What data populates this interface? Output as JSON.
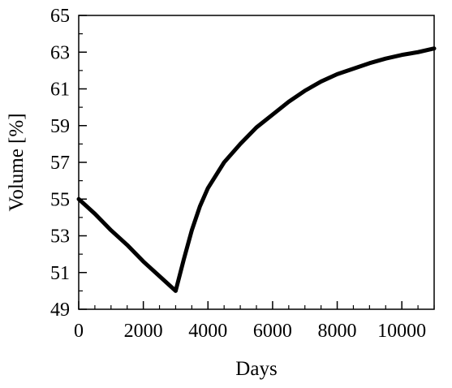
{
  "chart_data": {
    "type": "line",
    "title": "",
    "xlabel": "Days",
    "ylabel": "Volume [%]",
    "xlim": [
      0,
      11000
    ],
    "ylim": [
      49,
      65
    ],
    "xticks": [
      0,
      2000,
      4000,
      6000,
      8000,
      10000
    ],
    "yticks": [
      49,
      51,
      53,
      55,
      57,
      59,
      61,
      63,
      65
    ],
    "x_minor_step": 500,
    "y_minor_step": 1,
    "grid": false,
    "legend": "none",
    "line_color": "#000000",
    "series": [
      {
        "x": [
          0,
          500,
          1000,
          1500,
          2000,
          2500,
          3000,
          3250,
          3500,
          3750,
          4000,
          4500,
          5000,
          5500,
          6000,
          6500,
          7000,
          7500,
          8000,
          8500,
          9000,
          9500,
          10000,
          10500,
          11000
        ],
        "y": [
          55.0,
          54.2,
          53.3,
          52.5,
          51.6,
          50.8,
          50.0,
          51.7,
          53.3,
          54.6,
          55.6,
          57.0,
          58.0,
          58.9,
          59.6,
          60.3,
          60.9,
          61.4,
          61.8,
          62.1,
          62.4,
          62.65,
          62.85,
          63.0,
          63.2
        ]
      }
    ]
  }
}
